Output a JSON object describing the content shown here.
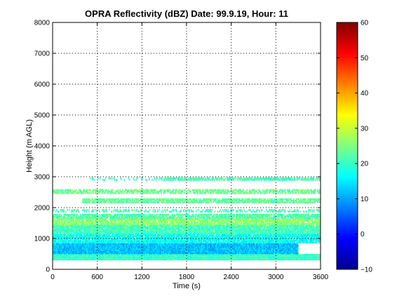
{
  "chart_data": {
    "type": "heatmap",
    "title": "OPRA Reflectivity (dBZ)  Date: 99.9.19, Hour: 11",
    "xlabel": "Time (s)",
    "ylabel": "Height (m AGL)",
    "xlim": [
      0,
      3600
    ],
    "ylim": [
      0,
      8000
    ],
    "xticks": [
      0,
      600,
      1200,
      1800,
      2400,
      3000,
      3600
    ],
    "yticks": [
      0,
      1000,
      2000,
      3000,
      4000,
      5000,
      6000,
      7000,
      8000
    ],
    "grid": true,
    "colorbar": {
      "min": -10,
      "max": 60,
      "ticks": [
        -10,
        0,
        10,
        20,
        30,
        40,
        50,
        60
      ],
      "colormap": "jet"
    },
    "layers": [
      {
        "y0": 300,
        "y1": 500,
        "dbz": 20,
        "x0": 0,
        "x1": 3600,
        "cover": 1.0
      },
      {
        "y0": 500,
        "y1": 850,
        "dbz": 12,
        "x0": 0,
        "x1": 3300,
        "cover": 1.0
      },
      {
        "y0": 850,
        "y1": 1150,
        "dbz": 17,
        "x0": 0,
        "x1": 3600,
        "cover": 0.95
      },
      {
        "y0": 1150,
        "y1": 1450,
        "dbz": 21,
        "x0": 0,
        "x1": 3600,
        "cover": 0.95
      },
      {
        "y0": 1450,
        "y1": 1650,
        "dbz": 26,
        "x0": 0,
        "x1": 3600,
        "cover": 0.9
      },
      {
        "y0": 1650,
        "y1": 1800,
        "dbz": 22,
        "x0": 0,
        "x1": 3600,
        "cover": 0.85
      },
      {
        "y0": 1850,
        "y1": 1950,
        "dbz": 21,
        "x0": 0,
        "x1": 3600,
        "cover": 0.45
      },
      {
        "y0": 2150,
        "y1": 2300,
        "dbz": 23,
        "x0": 400,
        "x1": 3600,
        "cover": 0.85
      },
      {
        "y0": 2450,
        "y1": 2600,
        "dbz": 24,
        "x0": 0,
        "x1": 3600,
        "cover": 0.7
      },
      {
        "y0": 2880,
        "y1": 2980,
        "dbz": 21,
        "x0": 1450,
        "x1": 3600,
        "cover": 0.8
      },
      {
        "y0": 2880,
        "y1": 2980,
        "dbz": 21,
        "x0": 500,
        "x1": 1800,
        "cover": 0.25
      }
    ]
  }
}
